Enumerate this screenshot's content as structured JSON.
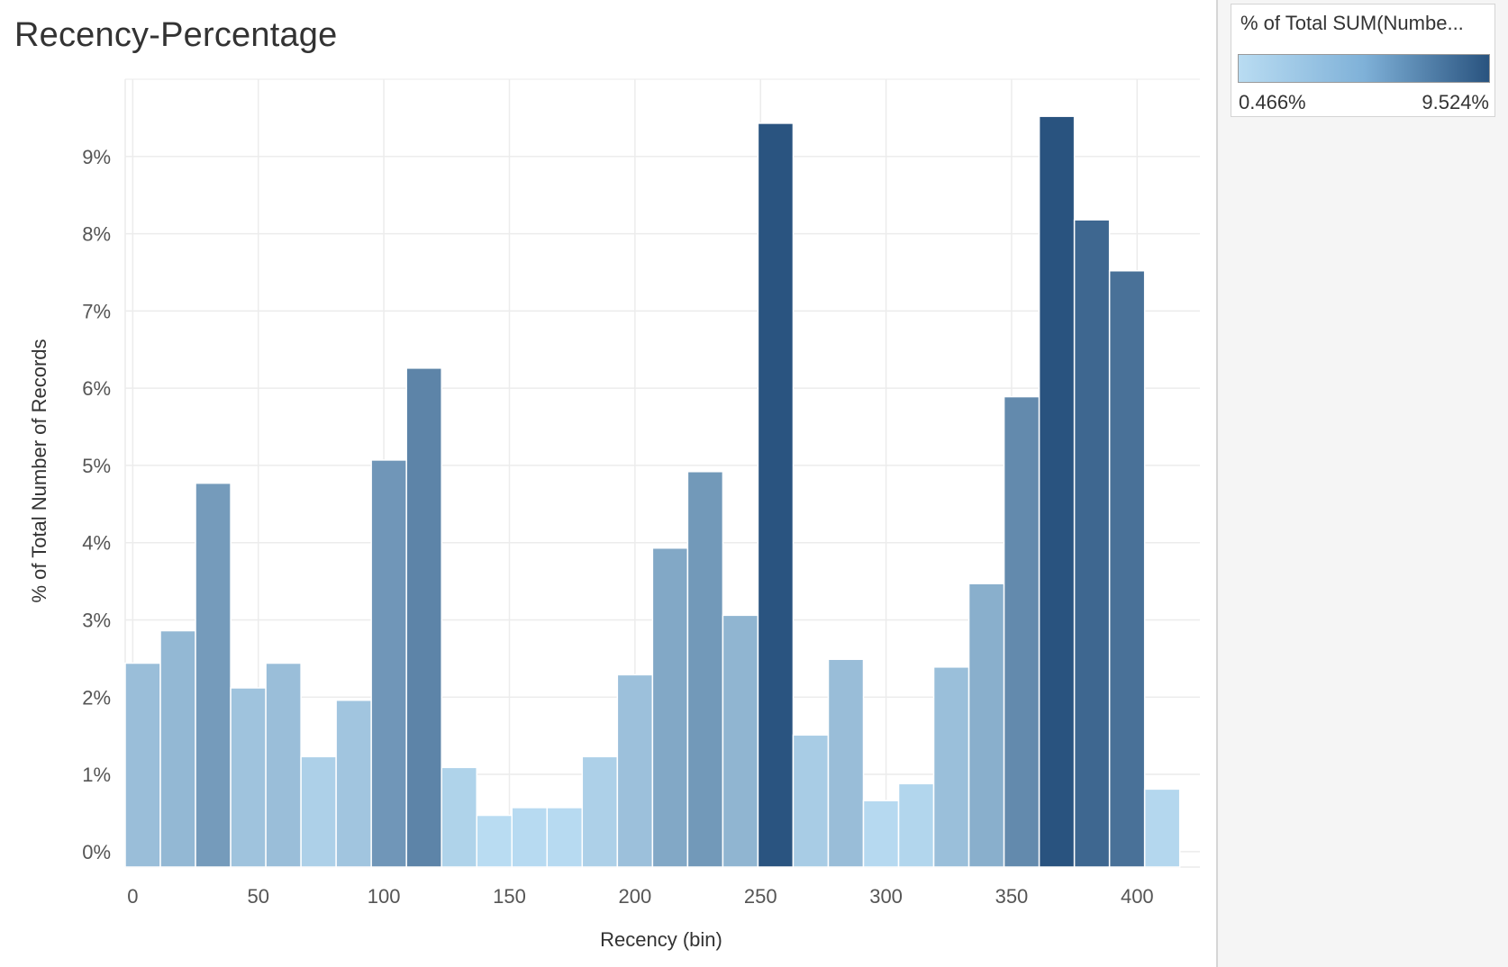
{
  "chart_data": {
    "type": "bar",
    "title": "Recency-Percentage",
    "xlabel": "Recency (bin)",
    "ylabel": "% of Total Number of Records",
    "bin_width": 14,
    "x_start": -3,
    "xlim": [
      -3,
      425
    ],
    "ylim": [
      -0.2,
      10
    ],
    "x_ticks": [
      0,
      50,
      100,
      150,
      200,
      250,
      300,
      350,
      400
    ],
    "x_tick_labels": [
      "0",
      "50",
      "100",
      "150",
      "200",
      "250",
      "300",
      "350",
      "400"
    ],
    "y_ticks": [
      0,
      1,
      2,
      3,
      4,
      5,
      6,
      7,
      8,
      9
    ],
    "y_tick_labels": [
      "0%",
      "1%",
      "2%",
      "3%",
      "4%",
      "5%",
      "6%",
      "7%",
      "8%",
      "9%"
    ],
    "values": [
      2.44,
      2.86,
      4.77,
      2.12,
      2.44,
      1.23,
      1.96,
      5.07,
      6.26,
      1.09,
      0.47,
      0.57,
      0.57,
      1.23,
      2.29,
      3.93,
      4.92,
      3.06,
      9.43,
      1.51,
      2.49,
      0.66,
      0.88,
      2.39,
      3.47,
      5.89,
      9.52,
      8.18,
      7.52,
      0.81
    ],
    "grid": true,
    "legend_title": "% of Total SUM(Numbe...",
    "legend_min_label": "0.466%",
    "legend_max_label": "9.524%",
    "color_min_value": 0.466,
    "color_max_value": 9.524,
    "color_low": "#b9dcf2",
    "color_high": "#29537f",
    "legend_position": "top-right"
  }
}
